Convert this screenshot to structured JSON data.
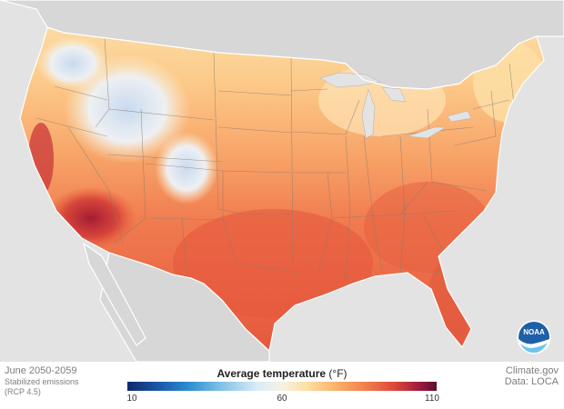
{
  "period": "June 2050-2059",
  "scenario_line1": "Stabilized emissions",
  "scenario_line2": "(RCP 4.5)",
  "legend": {
    "title": "Average temperature",
    "unit": "(°F)",
    "ticks": [
      "10",
      "60",
      "110"
    ],
    "min": 10,
    "max": 110
  },
  "credits": {
    "site": "Climate.gov",
    "data": "Data: LOCA"
  },
  "logo": {
    "text": "NOAA",
    "icon": "noaa-logo-icon"
  },
  "colors": {
    "cool": "#0d2a6b",
    "neutral": "#f6f2e1",
    "warm": "#df4a39",
    "hot": "#5a0f2e",
    "land_outside": "#d6d6d6",
    "ocean": "#e3e3e3"
  }
}
